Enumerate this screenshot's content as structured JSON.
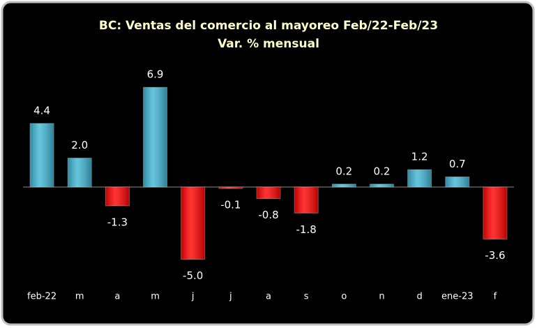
{
  "chart_data": {
    "type": "bar",
    "title": "BC: Ventas del comercio al mayoreo Feb/22-Feb/23",
    "subtitle": "Var. % mensual",
    "categories": [
      "feb-22",
      "m",
      "a",
      "m",
      "j",
      "j",
      "a",
      "s",
      "o",
      "n",
      "d",
      "ene-23",
      "f"
    ],
    "values": [
      4.4,
      2.0,
      -1.3,
      6.9,
      -5.0,
      -0.1,
      -0.8,
      -1.8,
      0.2,
      0.2,
      1.2,
      0.7,
      -3.6
    ],
    "value_labels": [
      "4.4",
      "2.0",
      "-1.3",
      "6.9",
      "-5.0",
      "-0.1",
      "-0.8",
      "-1.8",
      "0.2",
      "0.2",
      "1.2",
      "0.7",
      "-3.6"
    ],
    "positive_color": "#3fb6d4",
    "negative_color": "#ff0000"
  }
}
